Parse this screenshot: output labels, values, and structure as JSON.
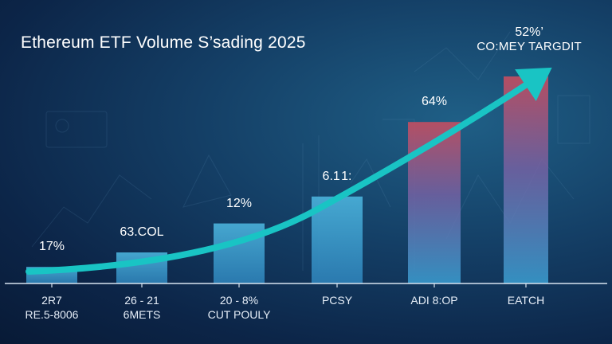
{
  "title": "Ethereum ETF Volume S’sading 2025",
  "corner": {
    "percent": "52%’",
    "label": "CO:MEY TARGDIT"
  },
  "colors": {
    "bar_start": "#3aa0d0",
    "bar_end": "#d9525f",
    "arrow": "#19c4c4",
    "axis": "#d8e4f0"
  },
  "chart_data": {
    "type": "bar",
    "title": "Ethereum ETF Volume S’sading 2025",
    "categories": [
      [
        "2R7",
        "RE.5-8006"
      ],
      [
        "26 - 21",
        "6METS"
      ],
      [
        "20 - 8%",
        "CUT POULY"
      ],
      [
        "PCSY",
        ""
      ],
      [
        "ADI 8:OP",
        ""
      ],
      [
        "EATCH",
        ""
      ]
    ],
    "data_labels": [
      "17%",
      "63.COL",
      "12%",
      "6.1 1:",
      "64%",
      ""
    ],
    "values": [
      8,
      15,
      29,
      42,
      78,
      100
    ],
    "ylim": [
      0,
      100
    ],
    "trend_arrow": true,
    "grid": false,
    "legend": "none"
  }
}
